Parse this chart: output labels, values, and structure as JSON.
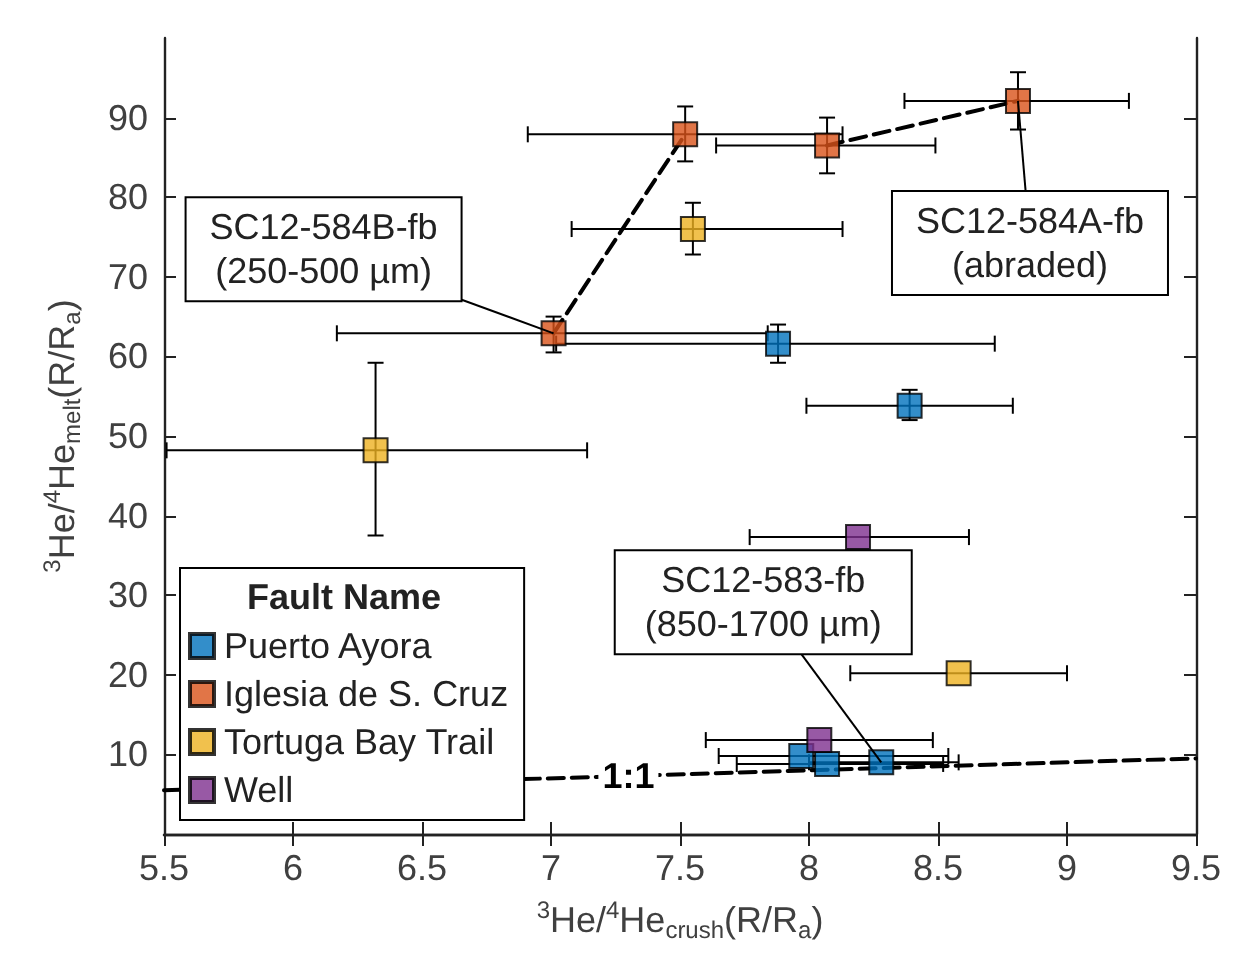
{
  "chart_data": {
    "type": "scatter",
    "xlabel": "$^{3}$He/$^{4}$He$_{crush}$(R/R$_{a}$)",
    "ylabel": "$^{3}$He/$^{4}$He$_{melt}$(R/R$_{a}$)",
    "legend_title": "Fault Name",
    "legend": "bottom left",
    "marker": "square",
    "grid": false,
    "xlim": [
      5.5,
      9.5
    ],
    "xticks": [
      5.5,
      6,
      6.5,
      7,
      7.5,
      8,
      8.5,
      9,
      9.5
    ],
    "ylim": [
      0,
      100
    ],
    "yticks": [
      10,
      20,
      30,
      40,
      50,
      60,
      70,
      80,
      90
    ],
    "series": [
      {
        "name": "Puerto Ayora",
        "color": "#0072bd",
        "x": [
          7.88,
          8.39,
          7.97,
          8.07,
          8.28
        ],
        "values": [
          61.6,
          53.8,
          9.8,
          8.8,
          9.0
        ],
        "errors": [
          [
            59.2,
            64.0
          ],
          [
            52.0,
            55.8
          ],
          null,
          null,
          null
        ],
        "xerrors": [
          [
            7.02,
            8.72
          ],
          [
            7.99,
            8.79
          ],
          [
            7.65,
            8.54
          ],
          [
            7.72,
            8.52
          ],
          [
            8.0,
            8.58
          ]
        ]
      },
      {
        "name": "Iglesia de S. Cruz",
        "color": "#d95319",
        "x": [
          7.01,
          7.52,
          8.07,
          8.81
        ],
        "values": [
          62.9,
          87.9,
          86.5,
          92.1
        ],
        "errors": [
          [
            60.5,
            65.0
          ],
          [
            84.5,
            91.4
          ],
          [
            83.0,
            90.0
          ],
          [
            88.5,
            95.7
          ]
        ],
        "xerrors": [
          [
            6.17,
            7.84
          ],
          [
            6.91,
            8.13
          ],
          [
            7.64,
            8.49
          ],
          [
            8.37,
            9.24
          ]
        ]
      },
      {
        "name": "Tortuga Bay Trail",
        "color": "#edb120",
        "x": [
          7.55,
          6.32,
          8.58
        ],
        "values": [
          76.0,
          48.2,
          20.2
        ],
        "errors": [
          [
            72.8,
            79.3
          ],
          [
            37.5,
            59.2
          ],
          null
        ],
        "xerrors": [
          [
            7.08,
            8.13
          ],
          [
            5.51,
            7.14
          ],
          [
            8.16,
            9.0
          ]
        ]
      },
      {
        "name": "Well",
        "color": "#7e2f8e",
        "x": [
          8.19,
          8.04
        ],
        "values": [
          37.3,
          11.8
        ],
        "xerrors": [
          [
            7.77,
            8.62
          ],
          [
            7.6,
            8.48
          ]
        ]
      },
      {
        "type": "line",
        "color": "#000000",
        "line_style": "dashed",
        "marker": "none",
        "x": [
          7.01,
          7.52,
          7.8,
          8.07,
          8.81
        ],
        "values": [
          62.9,
          87.9,
          null,
          86.5,
          92.1
        ]
      },
      {
        "type": "line",
        "name": "1:1",
        "color": "#000000",
        "line_style": "dashed",
        "marker": "none",
        "x": [
          5.5,
          9.5
        ],
        "values": [
          5.5,
          9.5
        ]
      }
    ],
    "annotations": [
      {
        "text": "SC12-584B-fb\n(250-500 µm)",
        "x": 7.01,
        "y": 62.9
      },
      {
        "text": "SC12-584A-fb\n(abraded)",
        "x": 8.81,
        "y": 92.1
      },
      {
        "text": "SC12-583-fb\n(850-1700 µm)",
        "x": 8.28,
        "y": 9.0
      }
    ]
  }
}
